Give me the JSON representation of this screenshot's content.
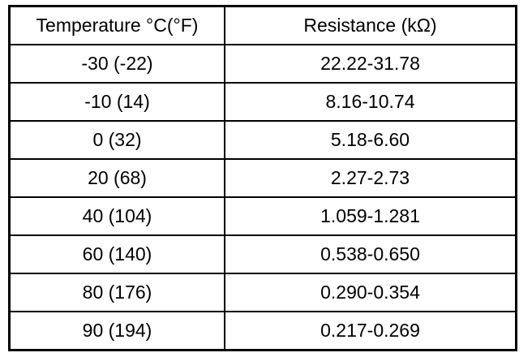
{
  "table": {
    "header": [
      "Temperature °C(°F)",
      "Resistance (kΩ)"
    ],
    "rows": [
      [
        "-30 (-22)",
        "22.22-31.78"
      ],
      [
        "-10 (14)",
        "8.16-10.74"
      ],
      [
        "0 (32)",
        "5.18-6.60"
      ],
      [
        "20 (68)",
        "2.27-2.73"
      ],
      [
        "40 (104)",
        "1.059-1.281"
      ],
      [
        "60 (140)",
        "0.538-0.650"
      ],
      [
        "80 (176)",
        "0.290-0.354"
      ],
      [
        "90 (194)",
        "0.217-0.269"
      ]
    ]
  }
}
